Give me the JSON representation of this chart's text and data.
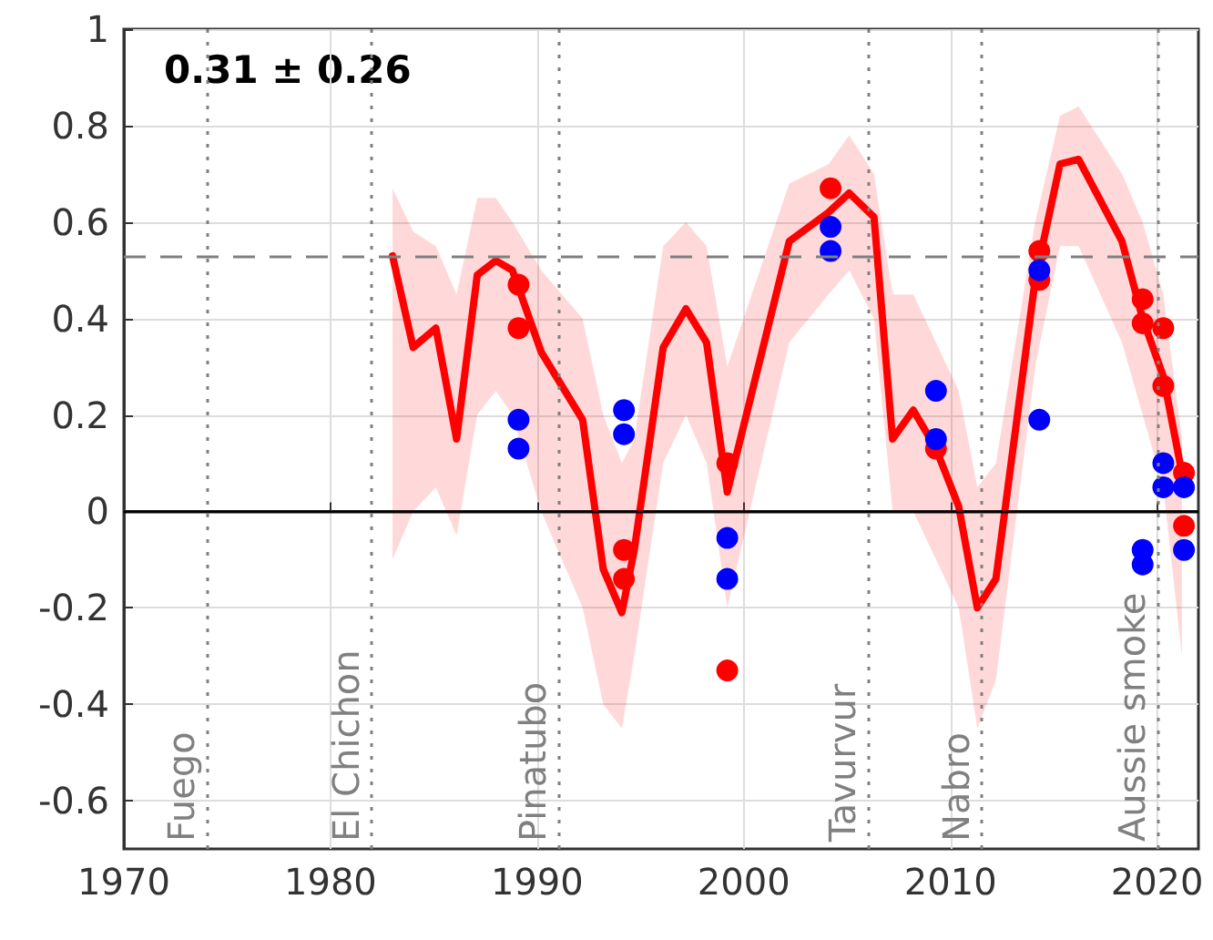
{
  "chart_data": {
    "type": "line",
    "annotations": [
      "0.31 ± 0.26"
    ],
    "xlim": [
      1970,
      2022
    ],
    "xticks": [
      1970,
      1980,
      1990,
      2000,
      2010,
      2020
    ],
    "ylim": [
      -0.7,
      1
    ],
    "yticks": [
      -0.6,
      -0.4,
      -0.2,
      0,
      0.2,
      0.4,
      0.6,
      0.8,
      1
    ],
    "grid": true,
    "ref_lines": [
      {
        "axis": "x",
        "value": 1974,
        "label": "Fuego",
        "color": "#808080",
        "line_style": "dotted"
      },
      {
        "axis": "x",
        "value": 1982,
        "label": "El Chichon",
        "color": "#808080",
        "line_style": "dotted"
      },
      {
        "axis": "x",
        "value": 1991,
        "label": "Pinatubo",
        "color": "#808080",
        "line_style": "dotted"
      },
      {
        "axis": "x",
        "value": 2006,
        "label": "Tavurvur",
        "color": "#808080",
        "line_style": "dotted"
      },
      {
        "axis": "x",
        "value": 2011.5,
        "label": "Nabro",
        "color": "#808080",
        "line_style": "dotted"
      },
      {
        "axis": "x",
        "value": 2020,
        "label": "Aussie smoke",
        "color": "#808080",
        "line_style": "dotted"
      },
      {
        "axis": "y",
        "value": 0,
        "color": "#000000",
        "line_style": "solid"
      },
      {
        "axis": "y",
        "value": 0.53,
        "color": "#808080",
        "line_style": "dashed"
      }
    ],
    "series": [
      {
        "color": "#ff0000",
        "marker": "none",
        "line_style": "solid",
        "x": [
          1983.0,
          1984.0,
          1985.1,
          1986.1,
          1987.1,
          1988.0,
          1988.8,
          1990.2,
          1992.2,
          1993.2,
          1994.1,
          1994.7,
          1996.1,
          1997.2,
          1998.2,
          1999.2,
          2002.2,
          2004.1,
          2005.1,
          2006.3,
          2007.2,
          2008.2,
          2009.3,
          2010.4,
          2011.3,
          2012.2,
          2014.1,
          2015.3,
          2016.2,
          2018.3,
          2019.3,
          2020.3,
          2021.2
        ],
        "values": [
          0.53,
          0.34,
          0.38,
          0.15,
          0.49,
          0.52,
          0.5,
          0.33,
          0.19,
          -0.12,
          -0.21,
          -0.08,
          0.34,
          0.42,
          0.35,
          0.04,
          0.56,
          0.62,
          0.66,
          0.61,
          0.15,
          0.21,
          0.13,
          0.01,
          -0.2,
          -0.14,
          0.48,
          0.72,
          0.73,
          0.56,
          0.4,
          0.28,
          0.08
        ],
        "upper": [
          0.67,
          0.58,
          0.55,
          0.45,
          0.65,
          0.65,
          0.6,
          0.5,
          0.4,
          0.2,
          0.1,
          0.15,
          0.55,
          0.6,
          0.55,
          0.3,
          0.68,
          0.72,
          0.78,
          0.7,
          0.45,
          0.45,
          0.35,
          0.25,
          0.05,
          0.1,
          0.6,
          0.82,
          0.84,
          0.7,
          0.6,
          0.45,
          0.15
        ],
        "lower": [
          -0.1,
          0.0,
          0.05,
          -0.05,
          0.2,
          0.25,
          0.2,
          0.0,
          -0.2,
          -0.4,
          -0.45,
          -0.3,
          0.1,
          0.2,
          0.1,
          -0.2,
          0.35,
          0.45,
          0.5,
          0.4,
          0.0,
          0.0,
          -0.1,
          -0.2,
          -0.45,
          -0.35,
          0.3,
          0.55,
          0.55,
          0.35,
          0.2,
          0.05,
          -0.3
        ]
      },
      {
        "type": "scatter",
        "color": "#ff0000",
        "marker": "circle",
        "x": [
          1989.1,
          1994.2,
          1999.2,
          2014.3,
          2019.3,
          2020.3,
          2021.3
        ],
        "values": [
          0.47,
          -0.14,
          -0.33,
          0.54,
          0.39,
          0.26,
          -0.03
        ]
      },
      {
        "type": "scatter",
        "color": "#ff0000",
        "marker": "circle",
        "x": [
          1989.1,
          1994.2,
          1999.2,
          2004.2,
          2009.3,
          2014.3,
          2019.3,
          2020.3,
          2021.3
        ],
        "values": [
          0.38,
          -0.08,
          0.1,
          0.67,
          0.13,
          0.48,
          0.44,
          0.38,
          0.08
        ]
      },
      {
        "type": "scatter",
        "color": "#0000ff",
        "marker": "circle",
        "x": [
          1989.1,
          1994.2,
          1999.2,
          2004.2,
          2009.3,
          2014.3,
          2019.3,
          2020.3,
          2021.3
        ],
        "values": [
          0.13,
          0.21,
          -0.14,
          0.54,
          0.25,
          0.19,
          -0.11,
          0.05,
          -0.08
        ]
      },
      {
        "type": "scatter",
        "color": "#0000ff",
        "marker": "circle",
        "x": [
          1989.1,
          1994.2,
          1999.2,
          2004.2,
          2009.3,
          2014.3,
          2019.3,
          2020.3,
          2021.3
        ],
        "values": [
          0.19,
          0.16,
          -0.055,
          0.59,
          0.15,
          0.5,
          -0.08,
          0.1,
          0.05
        ]
      }
    ]
  }
}
